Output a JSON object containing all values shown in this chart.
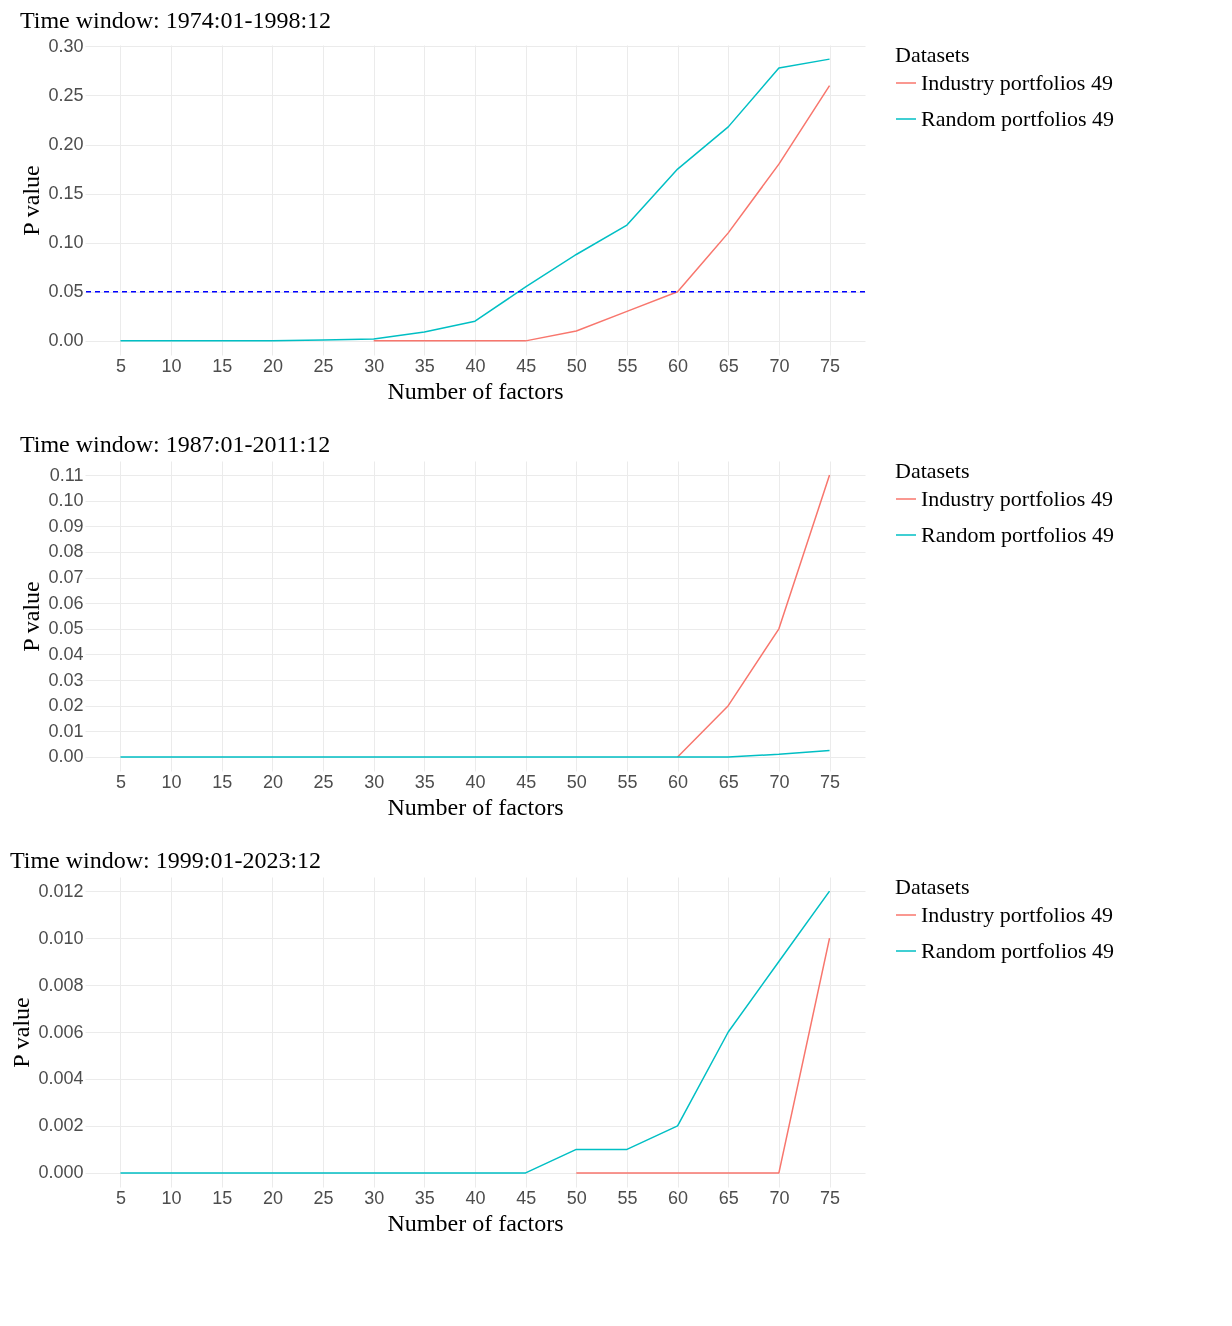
{
  "chart_data": [
    {
      "type": "line",
      "title": "Time window: 1974:01-1998:12",
      "xlabel": "Number of factors",
      "ylabel": "P value",
      "legend_title": "Datasets",
      "legend": "right",
      "grid": true,
      "x": [
        5,
        10,
        15,
        20,
        25,
        30,
        35,
        40,
        45,
        50,
        55,
        60,
        65,
        70,
        75
      ],
      "xlim": [
        1.5,
        78.5
      ],
      "xticks": [
        5,
        10,
        15,
        20,
        25,
        30,
        35,
        40,
        45,
        50,
        55,
        60,
        65,
        70,
        75
      ],
      "ylim": [
        -0.0144,
        0.3014
      ],
      "yticks": [
        {
          "value": 0,
          "label": "0.00"
        },
        {
          "value": 0.05,
          "label": "0.05"
        },
        {
          "value": 0.1,
          "label": "0.10"
        },
        {
          "value": 0.15,
          "label": "0.15"
        },
        {
          "value": 0.2,
          "label": "0.20"
        },
        {
          "value": 0.25,
          "label": "0.25"
        },
        {
          "value": 0.3,
          "label": "0.30"
        }
      ],
      "ref_lines": [
        {
          "axis": "y",
          "value": 0.05,
          "color": "#0000ff",
          "line_style": "dashed"
        }
      ],
      "series": [
        {
          "name": "Industry portfolios 49",
          "color": "#f8766d",
          "values": [
            null,
            null,
            null,
            null,
            null,
            0,
            0,
            0,
            0,
            0.01,
            0.03,
            0.05,
            0.11,
            0.18,
            0.26
          ]
        },
        {
          "name": "Random portfolios 49",
          "color": "#00bfc4",
          "values": [
            0,
            0,
            0,
            0,
            0.001,
            0.002,
            0.009,
            0.02,
            0.055,
            0.088,
            0.118,
            0.175,
            0.218,
            0.278,
            0.287
          ]
        }
      ]
    },
    {
      "type": "line",
      "title": "Time window: 1987:01-2011:12",
      "xlabel": "Number of factors",
      "ylabel": "P value",
      "legend_title": "Datasets",
      "legend": "right",
      "grid": true,
      "x": [
        5,
        10,
        15,
        20,
        25,
        30,
        35,
        40,
        45,
        50,
        55,
        60,
        65,
        70,
        75
      ],
      "xlim": [
        1.5,
        78.5
      ],
      "xticks": [
        5,
        10,
        15,
        20,
        25,
        30,
        35,
        40,
        45,
        50,
        55,
        60,
        65,
        70,
        75
      ],
      "ylim": [
        -0.0055,
        0.1155
      ],
      "yticks": [
        {
          "value": 0,
          "label": "0.00"
        },
        {
          "value": 0.01,
          "label": "0.01"
        },
        {
          "value": 0.02,
          "label": "0.02"
        },
        {
          "value": 0.03,
          "label": "0.03"
        },
        {
          "value": 0.04,
          "label": "0.04"
        },
        {
          "value": 0.05,
          "label": "0.05"
        },
        {
          "value": 0.06,
          "label": "0.06"
        },
        {
          "value": 0.07,
          "label": "0.07"
        },
        {
          "value": 0.08,
          "label": "0.08"
        },
        {
          "value": 0.09,
          "label": "0.09"
        },
        {
          "value": 0.1,
          "label": "0.10"
        },
        {
          "value": 0.11,
          "label": "0.11"
        }
      ],
      "series": [
        {
          "name": "Industry portfolios 49",
          "color": "#f8766d",
          "values": [
            null,
            null,
            null,
            null,
            null,
            null,
            null,
            null,
            null,
            null,
            null,
            0,
            0.02,
            0.05,
            0.11
          ]
        },
        {
          "name": "Random portfolios 49",
          "color": "#00bfc4",
          "values": [
            0,
            0,
            0,
            0,
            0,
            0,
            0,
            0,
            0,
            0,
            0,
            0,
            0,
            0.001,
            0.0025
          ]
        }
      ]
    },
    {
      "type": "line",
      "title": "Time window: 1999:01-2023:12",
      "xlabel": "Number of factors",
      "ylabel": "P value",
      "legend_title": "Datasets",
      "legend": "right",
      "grid": true,
      "x": [
        5,
        10,
        15,
        20,
        25,
        30,
        35,
        40,
        45,
        50,
        55,
        60,
        65,
        70,
        75
      ],
      "xlim": [
        1.5,
        78.5
      ],
      "xticks": [
        5,
        10,
        15,
        20,
        25,
        30,
        35,
        40,
        45,
        50,
        55,
        60,
        65,
        70,
        75
      ],
      "ylim": [
        -0.0006,
        0.0126
      ],
      "yticks": [
        {
          "value": 0,
          "label": "0.000"
        },
        {
          "value": 0.002,
          "label": "0.002"
        },
        {
          "value": 0.004,
          "label": "0.004"
        },
        {
          "value": 0.006,
          "label": "0.006"
        },
        {
          "value": 0.008,
          "label": "0.008"
        },
        {
          "value": 0.01,
          "label": "0.010"
        },
        {
          "value": 0.012,
          "label": "0.012"
        }
      ],
      "series": [
        {
          "name": "Industry portfolios 49",
          "color": "#f8766d",
          "values": [
            null,
            null,
            null,
            null,
            null,
            null,
            null,
            null,
            null,
            0,
            0,
            0,
            0,
            0,
            0.01
          ]
        },
        {
          "name": "Random portfolios 49",
          "color": "#00bfc4",
          "values": [
            0,
            0,
            0,
            0,
            0,
            0,
            0,
            0,
            0,
            0.001,
            0.001,
            0.002,
            0.006,
            0.009,
            0.012
          ]
        }
      ]
    }
  ]
}
